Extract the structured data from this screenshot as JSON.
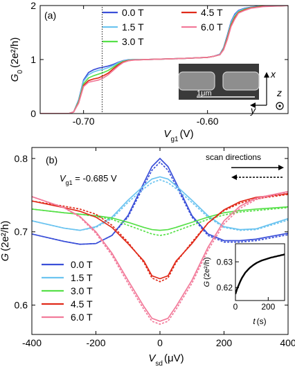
{
  "chart_data": [
    {
      "type": "line",
      "panel_label": "(a)",
      "xlabel_main": "V",
      "xlabel_sub": "g1",
      "xlabel_unit": "(V)",
      "ylabel": "G",
      "ylabel_sub": "0",
      "ylabel_unit": "(2e²/h)",
      "xlim": [
        -0.735,
        -0.535
      ],
      "ylim": [
        0,
        2
      ],
      "x_ticks": [
        -0.7,
        -0.6
      ],
      "x_tick_labels": [
        "-0.70",
        "-0.60"
      ],
      "y_ticks": [
        0,
        1,
        2
      ],
      "y_tick_labels": [
        "0",
        "1",
        "2"
      ],
      "dotted_marker_x": -0.685,
      "inset_labels": {
        "scale": "1μm",
        "x": "x",
        "y": "y",
        "z": "z"
      },
      "series": [
        {
          "name": "0.0 T",
          "color": "#3a4fd8",
          "x": [
            -0.735,
            -0.712,
            -0.708,
            -0.704,
            -0.7,
            -0.696,
            -0.692,
            -0.688,
            -0.684,
            -0.68,
            -0.676,
            -0.672,
            -0.668,
            -0.664,
            -0.66,
            -0.65,
            -0.62,
            -0.6,
            -0.595,
            -0.59,
            -0.587,
            -0.584,
            -0.581,
            -0.578,
            -0.575,
            -0.57,
            -0.565,
            -0.56,
            -0.555,
            -0.535
          ],
          "y": [
            0.0,
            0.0,
            0.03,
            0.25,
            0.62,
            0.76,
            0.81,
            0.84,
            0.86,
            0.88,
            0.91,
            0.95,
            0.98,
            0.995,
            1.0,
            1.0,
            1.02,
            1.04,
            1.06,
            1.1,
            1.22,
            1.45,
            1.7,
            1.84,
            1.91,
            1.95,
            1.97,
            1.985,
            2.0,
            2.0
          ]
        },
        {
          "name": "1.5 T",
          "color": "#6cc4f0",
          "x": [
            -0.735,
            -0.712,
            -0.708,
            -0.704,
            -0.7,
            -0.696,
            -0.692,
            -0.688,
            -0.684,
            -0.68,
            -0.676,
            -0.672,
            -0.668,
            -0.664,
            -0.66,
            -0.65,
            -0.62,
            -0.6,
            -0.595,
            -0.59,
            -0.587,
            -0.584,
            -0.581,
            -0.578,
            -0.575,
            -0.57,
            -0.565,
            -0.56,
            -0.555,
            -0.535
          ],
          "y": [
            0.0,
            0.0,
            0.03,
            0.24,
            0.6,
            0.72,
            0.77,
            0.8,
            0.82,
            0.85,
            0.89,
            0.94,
            0.975,
            0.99,
            1.0,
            1.0,
            1.02,
            1.04,
            1.06,
            1.1,
            1.21,
            1.43,
            1.68,
            1.82,
            1.9,
            1.94,
            1.965,
            1.98,
            1.995,
            2.0
          ]
        },
        {
          "name": "3.0 T",
          "color": "#56e048",
          "x": [
            -0.735,
            -0.712,
            -0.708,
            -0.704,
            -0.7,
            -0.696,
            -0.692,
            -0.688,
            -0.684,
            -0.68,
            -0.676,
            -0.672,
            -0.668,
            -0.664,
            -0.66,
            -0.65,
            -0.62,
            -0.6,
            -0.595,
            -0.59,
            -0.587,
            -0.584,
            -0.581,
            -0.578,
            -0.575,
            -0.57,
            -0.565,
            -0.56,
            -0.555,
            -0.535
          ],
          "y": [
            0.0,
            0.0,
            0.03,
            0.22,
            0.55,
            0.66,
            0.7,
            0.73,
            0.76,
            0.8,
            0.86,
            0.92,
            0.965,
            0.985,
            0.995,
            1.0,
            1.02,
            1.04,
            1.06,
            1.09,
            1.2,
            1.41,
            1.65,
            1.79,
            1.88,
            1.93,
            1.96,
            1.975,
            1.99,
            2.0
          ]
        },
        {
          "name": "4.5 T",
          "color": "#e02a1a",
          "x": [
            -0.735,
            -0.712,
            -0.708,
            -0.704,
            -0.7,
            -0.696,
            -0.692,
            -0.688,
            -0.684,
            -0.68,
            -0.676,
            -0.672,
            -0.668,
            -0.664,
            -0.66,
            -0.65,
            -0.62,
            -0.6,
            -0.595,
            -0.59,
            -0.587,
            -0.584,
            -0.581,
            -0.578,
            -0.575,
            -0.57,
            -0.565,
            -0.56,
            -0.555,
            -0.535
          ],
          "y": [
            0.0,
            0.0,
            0.03,
            0.2,
            0.52,
            0.61,
            0.64,
            0.66,
            0.7,
            0.75,
            0.83,
            0.9,
            0.955,
            0.98,
            0.99,
            1.0,
            1.02,
            1.04,
            1.06,
            1.09,
            1.19,
            1.39,
            1.63,
            1.77,
            1.87,
            1.92,
            1.955,
            1.97,
            1.985,
            2.0
          ]
        },
        {
          "name": "6.0 T",
          "color": "#f27a9a",
          "x": [
            -0.735,
            -0.712,
            -0.708,
            -0.704,
            -0.7,
            -0.696,
            -0.692,
            -0.688,
            -0.684,
            -0.68,
            -0.676,
            -0.672,
            -0.668,
            -0.664,
            -0.66,
            -0.65,
            -0.62,
            -0.6,
            -0.595,
            -0.59,
            -0.587,
            -0.584,
            -0.581,
            -0.578,
            -0.575,
            -0.57,
            -0.565,
            -0.56,
            -0.555,
            -0.535
          ],
          "y": [
            0.0,
            0.0,
            0.03,
            0.19,
            0.5,
            0.58,
            0.6,
            0.62,
            0.66,
            0.72,
            0.8,
            0.88,
            0.945,
            0.975,
            0.99,
            1.0,
            1.02,
            1.04,
            1.06,
            1.09,
            1.18,
            1.37,
            1.61,
            1.75,
            1.86,
            1.91,
            1.95,
            1.965,
            1.98,
            2.0
          ]
        }
      ]
    },
    {
      "type": "line",
      "panel_label": "(b)",
      "annotation_main": "V",
      "annotation_sub": "g1",
      "annotation_value": " = -0.685 V",
      "scan_label": "scan directions",
      "xlabel_main": "V",
      "xlabel_sub": "sd",
      "xlabel_unit": "(μV)",
      "ylabel": "G",
      "ylabel_unit": "(2e²/h)",
      "xlim": [
        -400,
        400
      ],
      "ylim": [
        0.56,
        0.815
      ],
      "x_ticks": [
        -400,
        -200,
        0,
        200,
        400
      ],
      "x_tick_labels": [
        "-400",
        "-200",
        "0",
        "200",
        "400"
      ],
      "y_ticks": [
        0.6,
        0.7,
        0.8
      ],
      "y_tick_labels": [
        "0.6",
        "0.7",
        "0.8"
      ],
      "series": [
        {
          "name": "0.0 T",
          "color": "#3a4fd8",
          "x": [
            -400,
            -300,
            -250,
            -200,
            -150,
            -100,
            -50,
            -25,
            0,
            25,
            50,
            100,
            150,
            200,
            250,
            300,
            400
          ],
          "y": [
            0.697,
            0.687,
            0.683,
            0.684,
            0.695,
            0.722,
            0.767,
            0.789,
            0.8,
            0.789,
            0.767,
            0.722,
            0.697,
            0.688,
            0.688,
            0.69,
            0.698
          ],
          "y_dashed": [
            0.697,
            0.687,
            0.683,
            0.684,
            0.695,
            0.72,
            0.763,
            0.784,
            0.795,
            0.784,
            0.763,
            0.72,
            0.695,
            0.686,
            0.686,
            0.688,
            0.696
          ]
        },
        {
          "name": "1.5 T",
          "color": "#6cc4f0",
          "x": [
            -400,
            -300,
            -250,
            -200,
            -150,
            -100,
            -50,
            -25,
            0,
            25,
            50,
            100,
            150,
            200,
            250,
            300,
            400
          ],
          "y": [
            0.715,
            0.705,
            0.702,
            0.707,
            0.72,
            0.743,
            0.763,
            0.772,
            0.775,
            0.772,
            0.763,
            0.743,
            0.722,
            0.707,
            0.703,
            0.704,
            0.718
          ],
          "y_dashed": [
            0.715,
            0.705,
            0.702,
            0.706,
            0.718,
            0.74,
            0.759,
            0.767,
            0.771,
            0.767,
            0.759,
            0.74,
            0.72,
            0.706,
            0.702,
            0.703,
            0.716
          ]
        },
        {
          "name": "3.0 T",
          "color": "#56e048",
          "x": [
            -400,
            -300,
            -250,
            -200,
            -150,
            -100,
            -50,
            -25,
            0,
            25,
            50,
            100,
            150,
            200,
            250,
            300,
            400
          ],
          "y": [
            0.731,
            0.726,
            0.724,
            0.722,
            0.719,
            0.713,
            0.706,
            0.703,
            0.702,
            0.703,
            0.706,
            0.713,
            0.72,
            0.726,
            0.729,
            0.731,
            0.734
          ],
          "y_dashed": [
            0.731,
            0.726,
            0.724,
            0.721,
            0.717,
            0.709,
            0.701,
            0.697,
            0.695,
            0.697,
            0.701,
            0.709,
            0.717,
            0.723,
            0.727,
            0.729,
            0.733
          ]
        },
        {
          "name": "4.5 T",
          "color": "#e02a1a",
          "x": [
            -400,
            -300,
            -250,
            -200,
            -150,
            -100,
            -50,
            -25,
            0,
            25,
            50,
            100,
            150,
            200,
            250,
            300,
            400
          ],
          "y": [
            0.742,
            0.733,
            0.728,
            0.72,
            0.706,
            0.684,
            0.66,
            0.64,
            0.636,
            0.64,
            0.66,
            0.684,
            0.712,
            0.73,
            0.741,
            0.747,
            0.752
          ],
          "y_dashed": [
            0.742,
            0.735,
            0.731,
            0.724,
            0.709,
            0.686,
            0.658,
            0.637,
            0.632,
            0.637,
            0.658,
            0.686,
            0.712,
            0.729,
            0.739,
            0.745,
            0.751
          ]
        },
        {
          "name": "6.0 T",
          "color": "#f27a9a",
          "x": [
            -400,
            -300,
            -250,
            -200,
            -150,
            -100,
            -50,
            -25,
            0,
            25,
            50,
            100,
            150,
            200,
            250,
            300,
            400
          ],
          "y": [
            0.748,
            0.733,
            0.721,
            0.7,
            0.671,
            0.634,
            0.598,
            0.582,
            0.578,
            0.582,
            0.598,
            0.634,
            0.679,
            0.715,
            0.735,
            0.746,
            0.755
          ],
          "y_dashed": [
            0.748,
            0.733,
            0.72,
            0.698,
            0.668,
            0.63,
            0.594,
            0.578,
            0.574,
            0.578,
            0.594,
            0.63,
            0.675,
            0.711,
            0.732,
            0.744,
            0.754
          ]
        }
      ],
      "inset": {
        "type": "line",
        "xlabel": "t",
        "xlabel_unit": "(s)",
        "ylabel": "G",
        "ylabel_unit": "(2e²/h)",
        "xlim": [
          0,
          300
        ],
        "ylim": [
          0.615,
          0.637
        ],
        "x_ticks": [
          0,
          200
        ],
        "x_tick_labels": [
          "0",
          "200"
        ],
        "y_ticks": [
          0.62,
          0.63
        ],
        "y_tick_labels": [
          "0.62",
          "0.63"
        ],
        "series": [
          {
            "color": "#000000",
            "x": [
              0,
              10,
              20,
              30,
              40,
              50,
              60,
              70,
              80,
              90,
              100,
              110,
              120,
              130,
              140,
              150,
              160,
              170,
              180,
              190,
              200,
              210,
              220,
              230,
              240,
              250,
              260,
              270,
              280,
              290,
              300
            ],
            "y": [
              0.6175,
              0.6195,
              0.621,
              0.6225,
              0.6238,
              0.6248,
              0.6258,
              0.6265,
              0.6272,
              0.6278,
              0.6283,
              0.6288,
              0.6292,
              0.6296,
              0.6299,
              0.6302,
              0.6305,
              0.6307,
              0.6309,
              0.6311,
              0.6313,
              0.6315,
              0.6317,
              0.6318,
              0.632,
              0.6321,
              0.6323,
              0.6324,
              0.6326,
              0.6327,
              0.6329
            ]
          }
        ]
      }
    }
  ]
}
